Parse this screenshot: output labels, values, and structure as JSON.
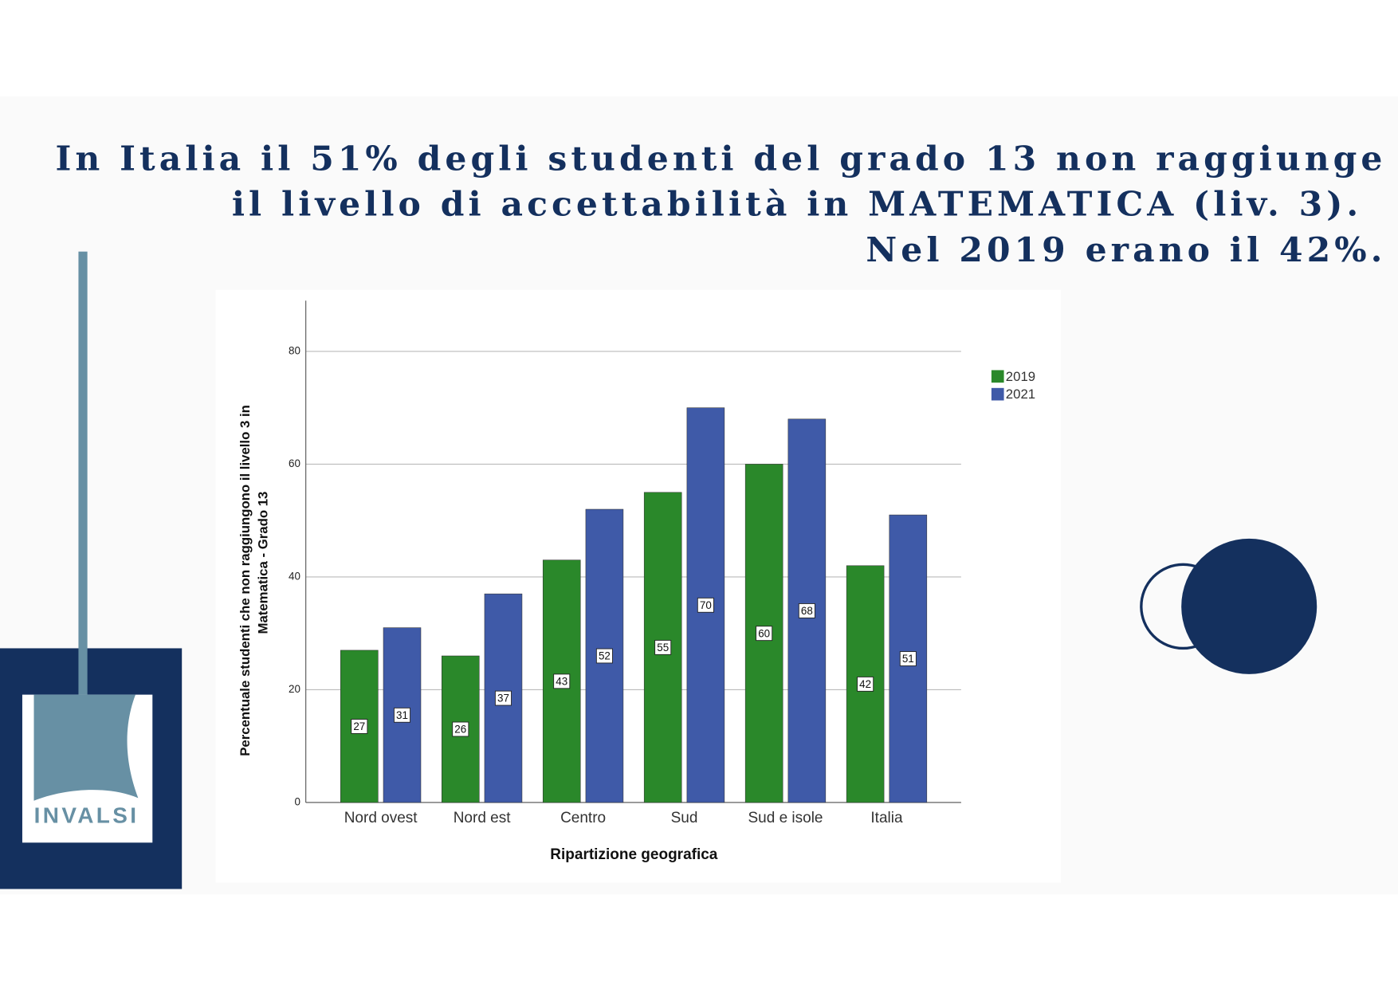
{
  "header": {
    "title_lines": [
      "In Italia il 51% degli studenti del grado 13 non raggiunge",
      "il livello di accettabilità in MATEMATICA (liv. 3).",
      "Nel 2019 erano il 42%."
    ]
  },
  "logo": {
    "text": "INVALSI"
  },
  "chart_data": {
    "type": "bar",
    "ylabel": [
      "Percentuale studenti che non raggiungono il livello 3 in",
      "Matematica - Grado 13"
    ],
    "xlabel": "Ripartizione geografica",
    "categories": [
      "Nord ovest",
      "Nord est",
      "Centro",
      "Sud",
      "Sud e isole",
      "Italia"
    ],
    "series": [
      {
        "name": "2019",
        "color": "#2a882a",
        "values": [
          27,
          26,
          43,
          55,
          60,
          42
        ]
      },
      {
        "name": "2021",
        "color": "#3f5aa8",
        "values": [
          31,
          37,
          52,
          70,
          68,
          51
        ]
      }
    ],
    "ylim": [
      0,
      89
    ],
    "yticks": [
      0,
      20,
      40,
      60,
      80
    ],
    "grid": true,
    "legend": "right"
  }
}
